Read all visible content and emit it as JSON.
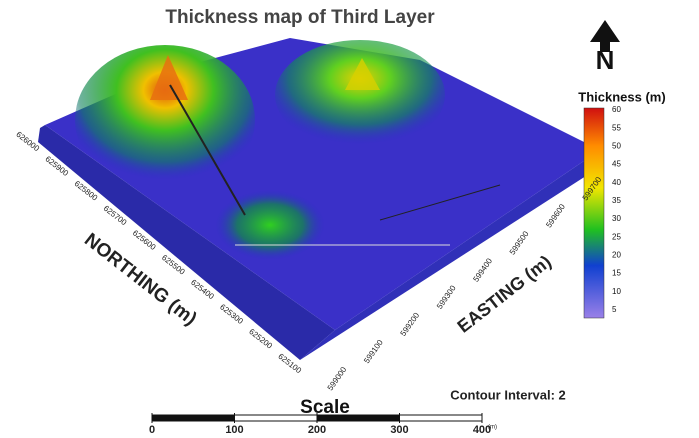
{
  "title": "Thickness map of Third Layer",
  "north_label": "N",
  "legend": {
    "title": "Thickness (m)",
    "ticks": [
      60,
      55,
      50,
      45,
      40,
      35,
      30,
      25,
      20,
      15,
      10,
      5
    ]
  },
  "northing": {
    "label": "NORTHING (m)",
    "ticks": [
      625100,
      625200,
      625300,
      625400,
      625500,
      625600,
      625700,
      625800,
      625900,
      626000
    ]
  },
  "easting": {
    "label": "EASTING (m)",
    "ticks": [
      599000,
      599100,
      599200,
      599300,
      599400,
      599500,
      599600,
      599700
    ]
  },
  "contour_note": "Contour Interval: 2",
  "scale": {
    "title": "Scale",
    "ticks": [
      0,
      100,
      200,
      300,
      400
    ],
    "unit": "(m)"
  }
}
